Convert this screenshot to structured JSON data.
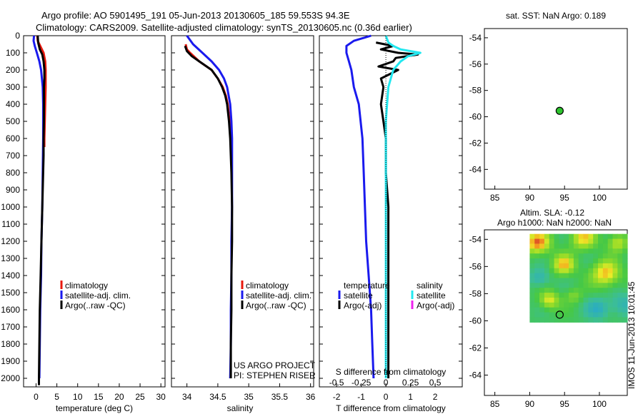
{
  "header": {
    "line1": "Argo profile: AO 5901495_191 05-Jun-2013 20130605_185 59.553S 94.3E",
    "line2": "Climatology: CARS2009. Satellite-adjusted climatology: synTS_20130605.nc (0.36d earlier)"
  },
  "colors": {
    "climatology": "#e8180c",
    "satellite": "#1a1aee",
    "argo": "#000000",
    "salinity_sat": "#22e8f0",
    "salinity_argo": "#ee22ee",
    "float_marker": "#2ec42e"
  },
  "chart_data": [
    {
      "id": "temperature",
      "type": "line",
      "xlabel": "temperature (deg C)",
      "ylabel": "",
      "xlim": [
        -3,
        31
      ],
      "ylim": [
        2050,
        0
      ],
      "xticks": [
        "0",
        "5",
        "10",
        "15",
        "20",
        "25",
        "30"
      ],
      "yticks": [
        "0",
        "100",
        "200",
        "300",
        "400",
        "500",
        "600",
        "700",
        "800",
        "900",
        "1000",
        "1100",
        "1200",
        "1300",
        "1400",
        "1500",
        "1600",
        "1700",
        "1800",
        "1900",
        "2000"
      ],
      "legend": [
        "climatology",
        "satellite-adj. clim.",
        "Argo(..raw -QC)"
      ],
      "series": [
        {
          "name": "climatology",
          "depth": [
            0,
            30,
            60,
            100,
            150,
            200,
            300,
            400,
            500,
            600,
            650
          ],
          "values": [
            0.3,
            0.4,
            1.0,
            1.8,
            2.2,
            2.3,
            2.3,
            2.2,
            2.1,
            2.0,
            2.0
          ]
        },
        {
          "name": "satellite-adj. clim.",
          "depth": [
            0,
            30,
            60,
            100,
            150,
            200,
            300,
            400,
            500,
            600,
            800,
            1000,
            1200,
            1400,
            1600,
            1800,
            2000
          ],
          "values": [
            -0.5,
            -0.6,
            -0.3,
            0.2,
            0.8,
            1.2,
            1.6,
            1.7,
            1.7,
            1.7,
            1.6,
            1.5,
            1.3,
            1.2,
            1.0,
            0.9,
            0.8
          ]
        },
        {
          "name": "Argo(..raw -QC)",
          "depth": [
            0,
            40,
            80,
            110,
            150,
            200,
            250,
            300,
            400,
            500,
            600,
            700,
            800,
            900,
            1000,
            1200,
            1400,
            1600,
            1800,
            2000,
            2040
          ],
          "values": [
            0.4,
            0.5,
            0.9,
            1.5,
            1.8,
            2.0,
            2.0,
            1.9,
            1.9,
            1.9,
            1.8,
            1.8,
            1.7,
            1.6,
            1.5,
            1.3,
            1.1,
            0.9,
            0.8,
            0.7,
            0.7
          ]
        }
      ]
    },
    {
      "id": "salinity",
      "type": "line",
      "xlabel": "salinity",
      "xlim": [
        33.75,
        36.05
      ],
      "ylim": [
        2050,
        0
      ],
      "xticks": [
        "34",
        "34.5",
        "35",
        "35.5",
        "36"
      ],
      "legend": [
        "climatology",
        "satellite-adj. clim.",
        "Argo(..raw -QC)"
      ],
      "annotation": [
        "US ARGO PROJECT",
        "PI: STEPHEN RISER"
      ],
      "series": [
        {
          "name": "climatology",
          "depth": [
            50,
            80,
            100,
            150,
            200,
            250,
            300,
            350,
            400,
            500,
            600
          ],
          "values": [
            33.98,
            34.0,
            34.05,
            34.2,
            34.4,
            34.5,
            34.58,
            34.63,
            34.66,
            34.69,
            34.71
          ]
        },
        {
          "name": "satellite-adj. clim.",
          "depth": [
            0,
            50,
            100,
            150,
            200,
            250,
            300,
            400,
            500,
            600,
            800,
            1000,
            1200,
            1400,
            1600,
            1800,
            2000
          ],
          "values": [
            34.0,
            34.1,
            34.25,
            34.4,
            34.52,
            34.6,
            34.65,
            34.7,
            34.72,
            34.73,
            34.73,
            34.73,
            34.72,
            34.72,
            34.71,
            34.71,
            34.7
          ]
        },
        {
          "name": "Argo(..raw -QC)",
          "depth": [
            60,
            90,
            120,
            150,
            200,
            250,
            300,
            350,
            400,
            500,
            600,
            800,
            1000,
            1200,
            1400,
            1600,
            1800,
            2000
          ],
          "values": [
            33.97,
            34.0,
            34.08,
            34.2,
            34.4,
            34.5,
            34.57,
            34.62,
            34.65,
            34.68,
            34.7,
            34.72,
            34.73,
            34.73,
            34.72,
            34.72,
            34.71,
            34.71
          ]
        }
      ]
    },
    {
      "id": "difference",
      "type": "line",
      "xlabel": "T difference from climatology",
      "xlabel2": "S difference from climatology",
      "xlim": [
        -2.7,
        3.1
      ],
      "ylim": [
        2050,
        0
      ],
      "xticks": [
        "-2",
        "-1",
        "0",
        "1",
        "2"
      ],
      "xticks_s": [
        "-0.5",
        "-0.25",
        "0",
        "0.25",
        "0.5"
      ],
      "legend_titles": [
        "temperature",
        "salinity"
      ],
      "legend": [
        "satellite",
        "Argo(-adj)",
        "satellite",
        "Argo(-adj)"
      ],
      "series": [
        {
          "name": "temperature satellite",
          "depth": [
            0,
            30,
            60,
            100,
            150,
            200,
            300,
            400,
            600,
            800,
            1000,
            1200,
            1400,
            1600,
            1800,
            2000
          ],
          "values": [
            -0.6,
            -1.3,
            -1.6,
            -1.6,
            -1.5,
            -1.4,
            -1.3,
            -1.1,
            -0.95,
            -0.9,
            -0.85,
            -0.8,
            -0.7,
            -0.6,
            -0.55,
            -0.5
          ]
        },
        {
          "name": "temperature Argo(-adj)",
          "depth": [
            40,
            60,
            80,
            100,
            110,
            130,
            150,
            180,
            200,
            250,
            300,
            400,
            500,
            600,
            800,
            1000,
            1200,
            1500,
            1800,
            2000
          ],
          "values": [
            -0.4,
            0.3,
            -0.2,
            0.5,
            1.3,
            0.4,
            0.3,
            -0.3,
            0.5,
            -0.2,
            -0.1,
            -0.2,
            -0.1,
            0.0,
            0.0,
            0.1,
            0.1,
            0.1,
            0.1,
            0.1
          ]
        },
        {
          "name": "salinity satellite",
          "depth": [
            0,
            40,
            60,
            80,
            100,
            120,
            150,
            200,
            250,
            300,
            400,
            500,
            600,
            800,
            1000,
            1500,
            2000
          ],
          "values": [
            0.0,
            0.1,
            0.3,
            0.6,
            1.4,
            0.9,
            0.6,
            0.3,
            0.2,
            0.1,
            0.05,
            0.0,
            0.0,
            0.0,
            0.0,
            0.0,
            0.0
          ]
        },
        {
          "name": "zero line",
          "depth": [
            0,
            2000
          ],
          "values": [
            0,
            0
          ]
        }
      ]
    },
    {
      "id": "sst_map",
      "type": "scatter",
      "title": "sat. SST: NaN Argo: 0.189",
      "xlim": [
        83.5,
        104
      ],
      "ylim": [
        -65.5,
        -53.3
      ],
      "xticks": [
        "85",
        "90",
        "95",
        "100"
      ],
      "yticks": [
        "-54",
        "-56",
        "-58",
        "-60",
        "-62",
        "-64"
      ],
      "points": [
        {
          "lon": 94.3,
          "lat": -59.55
        }
      ]
    },
    {
      "id": "sla_map",
      "type": "heatmap",
      "title_line1": "Altim. SLA: -0.12",
      "title_line2": "Argo h1000: NaN h2000: NaN",
      "xlim": [
        83.5,
        104
      ],
      "ylim": [
        -65.5,
        -53.3
      ],
      "grid_extent": {
        "lon": [
          90,
          104
        ],
        "lat": [
          -60.1,
          -53.6
        ]
      },
      "xticks": [
        "85",
        "90",
        "95",
        "100"
      ],
      "yticks": [
        "-54",
        "-56",
        "-58",
        "-60",
        "-62",
        "-64"
      ],
      "points": [
        {
          "lon": 94.3,
          "lat": -59.55
        }
      ]
    }
  ],
  "watermark": "IMOS 11-Jun-2013 10:01:45"
}
